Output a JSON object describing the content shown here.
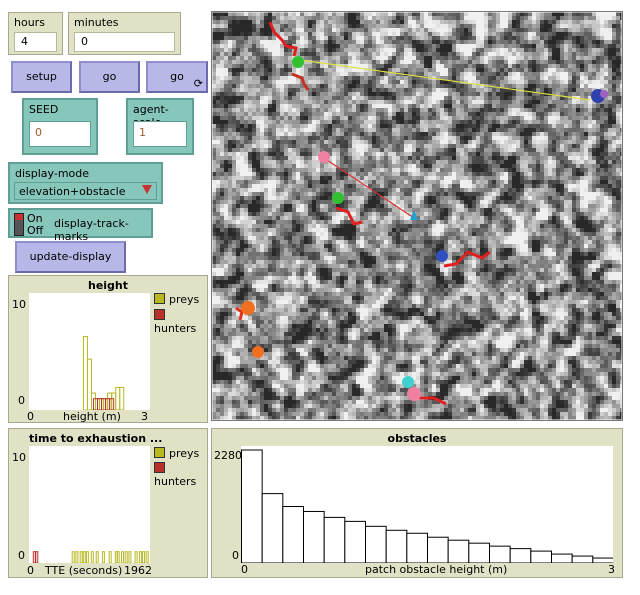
{
  "monitors": {
    "hours": {
      "label": "hours",
      "value": "4"
    },
    "minutes": {
      "label": "minutes",
      "value": "0"
    }
  },
  "buttons": {
    "setup": "setup",
    "go": "go",
    "go_forever": "go",
    "update_display": "update-display"
  },
  "sliders": {
    "seed": {
      "label": "SEED",
      "value": "0"
    },
    "agent_scale": {
      "label": "agent-scale",
      "value": "1"
    }
  },
  "chooser": {
    "label": "display-mode",
    "value": "elevation+obstacle"
  },
  "switch": {
    "on": "On",
    "off": "Off",
    "label": "display-track-marks"
  },
  "plots": {
    "height": {
      "title": "height",
      "ymax": "10",
      "ymin": "0",
      "xmin": "0",
      "xmax": "3",
      "xlabel": "height (m)",
      "legend": [
        {
          "name": "preys",
          "color": "#b8b820"
        },
        {
          "name": "hunters",
          "color": "#b8302a"
        }
      ]
    },
    "tte": {
      "title": "time to exhaustion ...",
      "ymax": "10",
      "ymin": "0",
      "xmin": "0",
      "xmax": "1962",
      "xlabel": "TTE (seconds)",
      "legend": [
        {
          "name": "preys",
          "color": "#b8b820"
        },
        {
          "name": "hunters",
          "color": "#b8302a"
        }
      ]
    },
    "obstacles": {
      "title": "obstacles",
      "ymax": "2280",
      "ymin": "0",
      "xmin": "0",
      "xmax": "3",
      "xlabel": "patch obstacle height (m)"
    }
  },
  "chart_data": [
    {
      "type": "bar",
      "title": "height",
      "xlabel": "height (m)",
      "ylim": [
        0,
        10
      ],
      "xlim": [
        0,
        3
      ],
      "series": [
        {
          "name": "preys",
          "x": [
            1.35,
            1.45,
            1.55,
            1.65,
            1.75,
            1.85,
            1.95,
            2.05,
            2.15,
            2.25
          ],
          "values": [
            6.5,
            4.5,
            1.5,
            1,
            1,
            1,
            1.5,
            1.5,
            2,
            2
          ]
        },
        {
          "name": "hunters",
          "x": [
            1.6,
            1.7,
            1.8,
            1.9,
            2.0
          ],
          "values": [
            1,
            1,
            1,
            1,
            1
          ]
        }
      ]
    },
    {
      "type": "bar",
      "title": "time to exhaustion ...",
      "xlabel": "TTE (seconds)",
      "ylim": [
        0,
        10
      ],
      "xlim": [
        0,
        1962
      ],
      "series": [
        {
          "name": "preys",
          "x": [
            700,
            760,
            830,
            880,
            930,
            1010,
            1090,
            1190,
            1300,
            1400,
            1430,
            1500,
            1560,
            1620,
            1720,
            1790,
            1840,
            1900
          ],
          "values": [
            1,
            1,
            1,
            1,
            1,
            1,
            1,
            1,
            1,
            1,
            1,
            1,
            1,
            1,
            1,
            1,
            1,
            1
          ]
        },
        {
          "name": "hunters",
          "x": [
            70,
            110
          ],
          "values": [
            1,
            1
          ]
        }
      ]
    },
    {
      "type": "bar",
      "title": "obstacles",
      "xlabel": "patch obstacle height (m)",
      "ylim": [
        0,
        2280
      ],
      "xlim": [
        0,
        3
      ],
      "series": [
        {
          "name": "",
          "values": [
            2280,
            1400,
            1140,
            1040,
            920,
            840,
            740,
            660,
            600,
            520,
            460,
            400,
            340,
            290,
            240,
            180,
            140,
            100
          ]
        }
      ]
    }
  ]
}
